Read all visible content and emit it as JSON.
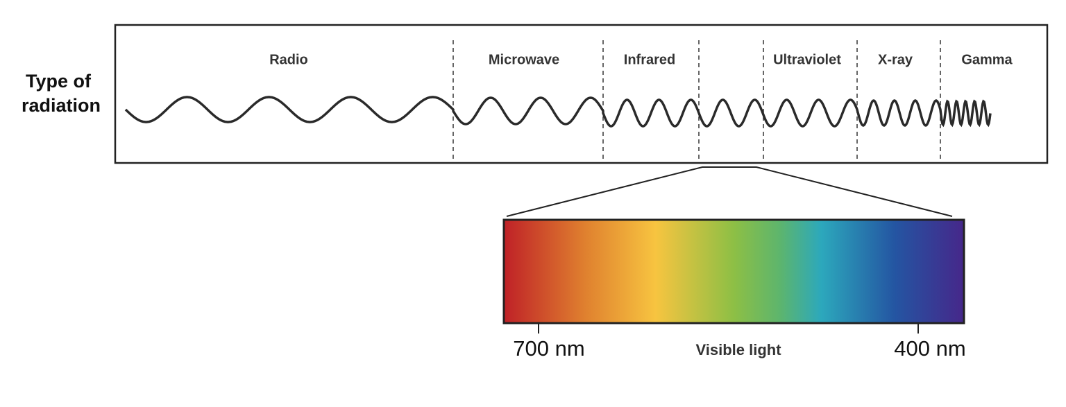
{
  "row_label": {
    "lines": [
      "Type of",
      "radiation"
    ]
  },
  "bands": [
    {
      "label": "Radio"
    },
    {
      "label": "Microwave"
    },
    {
      "label": "Infrared"
    },
    {
      "label": "Ultraviolet"
    },
    {
      "label": "X-ray"
    },
    {
      "label": "Gamma"
    }
  ],
  "spectrum": {
    "left_label": "700 nm",
    "center_label": "Visible light",
    "right_label": "400 nm"
  }
}
